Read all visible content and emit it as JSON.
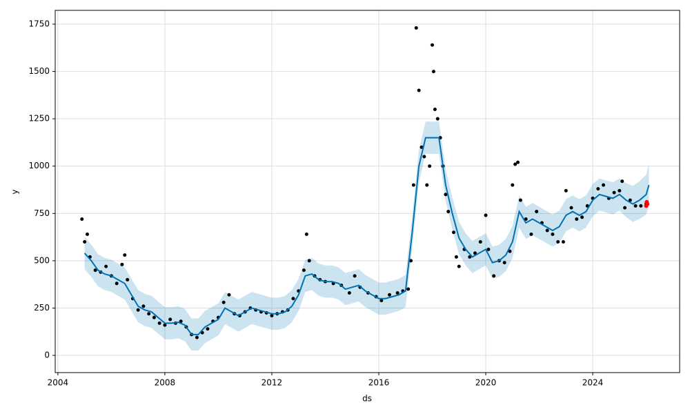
{
  "chart_data": {
    "type": "forecast",
    "xlabel": "ds",
    "ylabel": "y",
    "xlim": [
      2003.9,
      2027.25
    ],
    "ylim": [
      -91,
      1823
    ],
    "xticks": [
      2004,
      2008,
      2012,
      2016,
      2020,
      2024
    ],
    "yticks": [
      0,
      250,
      500,
      750,
      1000,
      1250,
      1500,
      1750
    ],
    "grid": true,
    "forecast": {
      "color": "#0072B2",
      "x": [
        2005.0,
        2005.25,
        2005.5,
        2005.75,
        2006.0,
        2006.25,
        2006.5,
        2006.75,
        2007.0,
        2007.25,
        2007.5,
        2007.75,
        2008.0,
        2008.25,
        2008.5,
        2008.75,
        2009.0,
        2009.25,
        2009.5,
        2009.75,
        2010.0,
        2010.25,
        2010.5,
        2010.75,
        2011.0,
        2011.25,
        2011.5,
        2011.75,
        2012.0,
        2012.25,
        2012.5,
        2012.75,
        2013.0,
        2013.25,
        2013.5,
        2013.75,
        2014.0,
        2014.25,
        2014.5,
        2014.75,
        2015.0,
        2015.25,
        2015.5,
        2015.75,
        2016.0,
        2016.25,
        2016.5,
        2016.75,
        2017.0,
        2017.25,
        2017.5,
        2017.75,
        2018.0,
        2018.25,
        2018.5,
        2018.75,
        2019.0,
        2019.25,
        2019.5,
        2019.75,
        2020.0,
        2020.25,
        2020.5,
        2020.75,
        2021.0,
        2021.25,
        2021.5,
        2021.75,
        2022.0,
        2022.25,
        2022.5,
        2022.75,
        2023.0,
        2023.25,
        2023.5,
        2023.75,
        2024.0,
        2024.25,
        2024.5,
        2024.75,
        2025.0,
        2025.25,
        2025.5,
        2025.75,
        2026.0,
        2026.1
      ],
      "values": [
        540,
        500,
        450,
        430,
        420,
        400,
        380,
        320,
        260,
        240,
        230,
        200,
        170,
        170,
        175,
        160,
        110,
        110,
        150,
        170,
        190,
        250,
        230,
        210,
        230,
        250,
        240,
        230,
        220,
        220,
        230,
        260,
        320,
        420,
        430,
        400,
        390,
        390,
        380,
        350,
        360,
        370,
        340,
        320,
        300,
        300,
        310,
        320,
        340,
        650,
        1000,
        1150,
        1150,
        1150,
        900,
        750,
        620,
        560,
        520,
        540,
        560,
        490,
        500,
        530,
        600,
        760,
        700,
        720,
        700,
        680,
        660,
        680,
        740,
        760,
        740,
        760,
        820,
        850,
        840,
        830,
        850,
        820,
        800,
        820,
        850,
        900
      ],
      "lower": [
        455,
        415,
        365,
        345,
        335,
        315,
        295,
        235,
        175,
        155,
        145,
        115,
        85,
        85,
        90,
        75,
        25,
        25,
        65,
        85,
        105,
        165,
        145,
        125,
        145,
        165,
        155,
        145,
        135,
        135,
        145,
        175,
        235,
        335,
        345,
        315,
        305,
        305,
        295,
        265,
        275,
        285,
        255,
        235,
        215,
        215,
        225,
        235,
        255,
        565,
        915,
        1065,
        1065,
        1065,
        815,
        665,
        535,
        475,
        435,
        455,
        475,
        405,
        415,
        445,
        515,
        675,
        615,
        635,
        615,
        595,
        575,
        595,
        655,
        675,
        655,
        675,
        735,
        765,
        755,
        745,
        765,
        730,
        705,
        720,
        745,
        790
      ],
      "upper": [
        625,
        585,
        535,
        515,
        505,
        485,
        465,
        405,
        345,
        325,
        315,
        285,
        255,
        255,
        260,
        245,
        195,
        195,
        235,
        255,
        275,
        335,
        315,
        295,
        315,
        335,
        325,
        315,
        305,
        305,
        315,
        345,
        405,
        505,
        515,
        485,
        475,
        475,
        465,
        435,
        445,
        455,
        425,
        405,
        385,
        385,
        395,
        405,
        425,
        735,
        1085,
        1235,
        1235,
        1235,
        985,
        835,
        705,
        645,
        605,
        625,
        645,
        575,
        585,
        615,
        685,
        845,
        785,
        805,
        785,
        765,
        745,
        765,
        825,
        845,
        825,
        845,
        905,
        935,
        925,
        915,
        935,
        910,
        895,
        920,
        955,
        1010
      ]
    },
    "observed": {
      "color": "#000000",
      "x": [
        2004.9,
        2005.0,
        2005.1,
        2005.2,
        2005.4,
        2005.6,
        2005.8,
        2006.0,
        2006.2,
        2006.4,
        2006.5,
        2006.6,
        2006.8,
        2007.0,
        2007.2,
        2007.4,
        2007.6,
        2007.8,
        2008.0,
        2008.2,
        2008.4,
        2008.6,
        2008.8,
        2009.0,
        2009.2,
        2009.4,
        2009.6,
        2009.8,
        2010.0,
        2010.2,
        2010.4,
        2010.6,
        2010.8,
        2011.0,
        2011.2,
        2011.4,
        2011.6,
        2011.8,
        2012.0,
        2012.2,
        2012.4,
        2012.6,
        2012.8,
        2013.0,
        2013.2,
        2013.3,
        2013.4,
        2013.6,
        2013.8,
        2014.0,
        2014.3,
        2014.6,
        2014.9,
        2015.1,
        2015.3,
        2015.6,
        2015.9,
        2016.1,
        2016.4,
        2016.7,
        2016.9,
        2017.1,
        2017.2,
        2017.3,
        2017.4,
        2017.5,
        2017.6,
        2017.7,
        2017.8,
        2017.9,
        2018.0,
        2018.05,
        2018.1,
        2018.2,
        2018.3,
        2018.4,
        2018.5,
        2018.6,
        2018.8,
        2018.9,
        2019.0,
        2019.2,
        2019.4,
        2019.6,
        2019.8,
        2020.0,
        2020.1,
        2020.3,
        2020.5,
        2020.7,
        2020.9,
        2021.0,
        2021.1,
        2021.2,
        2021.3,
        2021.5,
        2021.7,
        2021.9,
        2022.1,
        2022.3,
        2022.5,
        2022.7,
        2022.9,
        2023.0,
        2023.2,
        2023.4,
        2023.6,
        2023.8,
        2024.0,
        2024.2,
        2024.4,
        2024.6,
        2024.8,
        2025.0,
        2025.1,
        2025.2,
        2025.4,
        2025.6,
        2025.8,
        2026.0
      ],
      "values": [
        720,
        600,
        640,
        520,
        450,
        440,
        470,
        420,
        380,
        480,
        530,
        400,
        300,
        240,
        260,
        220,
        200,
        170,
        160,
        190,
        170,
        180,
        150,
        110,
        95,
        120,
        140,
        180,
        200,
        280,
        320,
        220,
        210,
        230,
        250,
        240,
        230,
        225,
        210,
        220,
        230,
        240,
        300,
        340,
        450,
        640,
        500,
        420,
        400,
        390,
        380,
        370,
        330,
        420,
        360,
        330,
        310,
        290,
        320,
        330,
        340,
        350,
        500,
        900,
        1730,
        1400,
        1100,
        1050,
        900,
        1000,
        1640,
        1500,
        1300,
        1250,
        1150,
        1000,
        850,
        760,
        650,
        520,
        470,
        560,
        520,
        540,
        600,
        740,
        560,
        420,
        500,
        490,
        550,
        900,
        1010,
        1020,
        820,
        720,
        640,
        760,
        700,
        660,
        640,
        600,
        600,
        870,
        780,
        720,
        730,
        790,
        830,
        880,
        900,
        830,
        860,
        870,
        920,
        780,
        820,
        790,
        790,
        800
      ]
    },
    "future": {
      "color": "#ff0000",
      "x": [
        2026.0,
        2026.02,
        2026.04
      ],
      "values": [
        790,
        810,
        800
      ]
    }
  }
}
